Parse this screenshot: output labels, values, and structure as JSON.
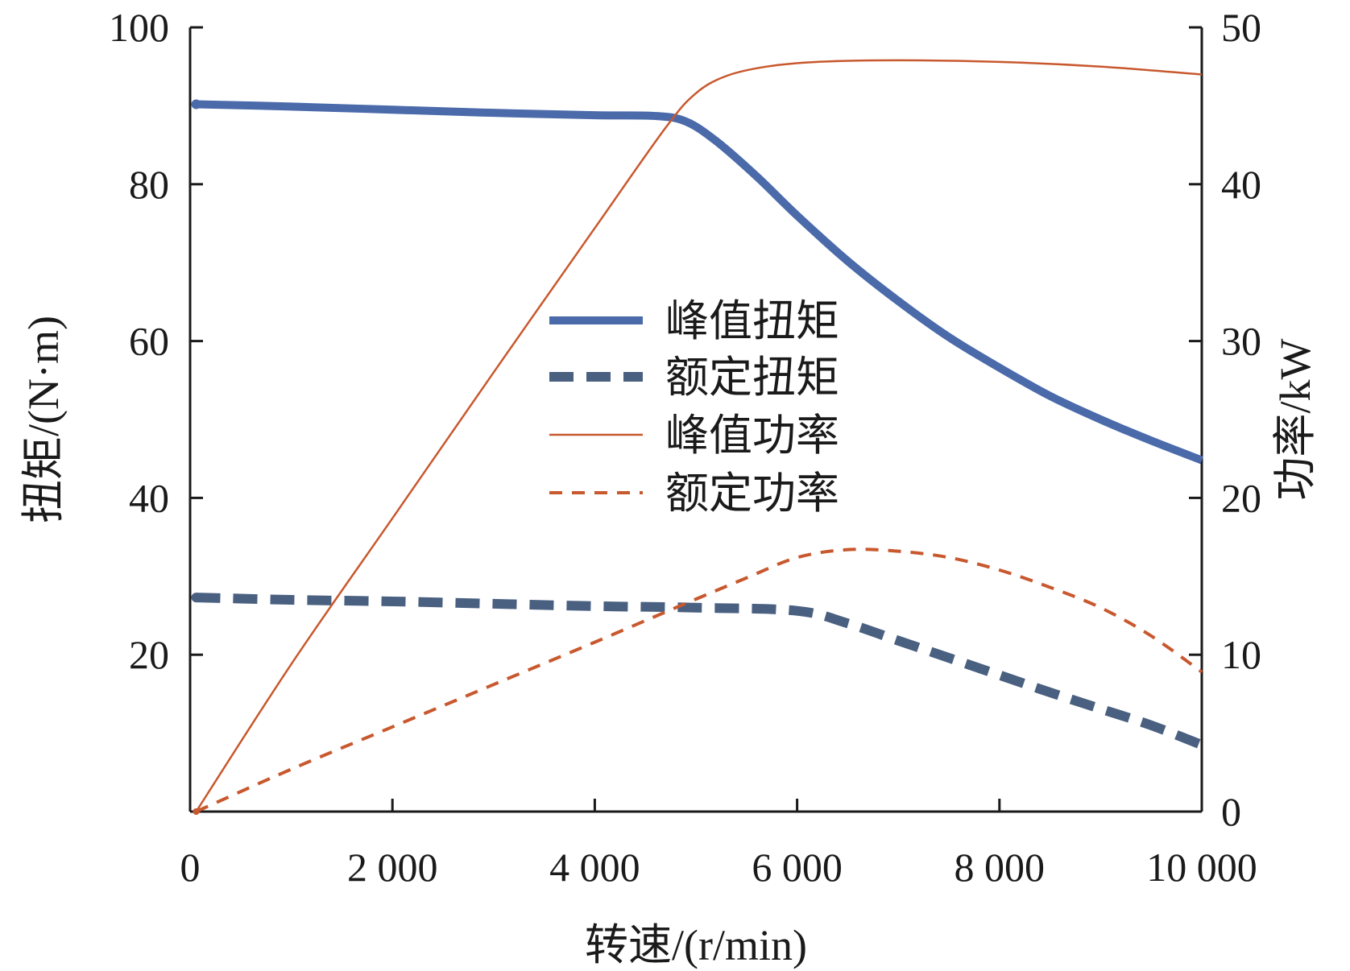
{
  "chart_data": {
    "type": "line",
    "xlabel": "转速/(r/min)",
    "ylabel_left": "扭矩/(N·m)",
    "ylabel_right": "功率/kW",
    "xlim": [
      0,
      10000
    ],
    "ylim_left": [
      0,
      100
    ],
    "ylim_right": [
      0,
      50
    ],
    "x_ticks": [
      0,
      2000,
      4000,
      6000,
      8000,
      10000
    ],
    "x_tick_labels": [
      "0",
      "2 000",
      "4 000",
      "6 000",
      "8 000",
      "10 000"
    ],
    "y_left_ticks": [
      20,
      40,
      60,
      80,
      100
    ],
    "y_left_tick_labels": [
      "20",
      "40",
      "60",
      "80",
      "100"
    ],
    "y_right_ticks": [
      0,
      10,
      20,
      30,
      40,
      50
    ],
    "y_right_tick_labels": [
      "0",
      "10",
      "20",
      "30",
      "40",
      "50"
    ],
    "legend_position": "center",
    "grid": false,
    "series": [
      {
        "name": "峰值扭矩",
        "axis": "left",
        "color": "#4a6aaa",
        "style": "solid-thick",
        "points": [
          [
            60,
            90.2
          ],
          [
            1000,
            89.9
          ],
          [
            2000,
            89.5
          ],
          [
            3000,
            89.1
          ],
          [
            4000,
            88.8
          ],
          [
            4600,
            88.7
          ],
          [
            4900,
            88.0
          ],
          [
            5200,
            85.5
          ],
          [
            5600,
            81.0
          ],
          [
            6000,
            76.0
          ],
          [
            6500,
            70.2
          ],
          [
            7000,
            65.1
          ],
          [
            7500,
            60.5
          ],
          [
            8000,
            56.6
          ],
          [
            8500,
            53.0
          ],
          [
            9000,
            50.0
          ],
          [
            9500,
            47.3
          ],
          [
            10000,
            44.8
          ]
        ]
      },
      {
        "name": "额定扭矩",
        "axis": "left",
        "color": "#4a6080",
        "style": "dashed-thick",
        "points": [
          [
            60,
            27.3
          ],
          [
            1000,
            27.0
          ],
          [
            2000,
            26.8
          ],
          [
            3000,
            26.5
          ],
          [
            4000,
            26.2
          ],
          [
            5000,
            26.0
          ],
          [
            6000,
            25.6
          ],
          [
            6500,
            24.0
          ],
          [
            7000,
            21.8
          ],
          [
            7500,
            19.6
          ],
          [
            8000,
            17.4
          ],
          [
            8500,
            15.2
          ],
          [
            9000,
            13.1
          ],
          [
            9500,
            11.0
          ],
          [
            10000,
            8.5
          ]
        ]
      },
      {
        "name": "峰值功率",
        "axis": "right",
        "color": "#c8582e",
        "style": "solid-thin",
        "points": [
          [
            60,
            0
          ],
          [
            1000,
            9.4
          ],
          [
            2000,
            18.7
          ],
          [
            3000,
            28.0
          ],
          [
            4000,
            37.2
          ],
          [
            4700,
            43.6
          ],
          [
            5000,
            45.8
          ],
          [
            5300,
            46.9
          ],
          [
            5700,
            47.5
          ],
          [
            6200,
            47.8
          ],
          [
            7000,
            47.9
          ],
          [
            8000,
            47.8
          ],
          [
            9000,
            47.5
          ],
          [
            10000,
            47.0
          ]
        ]
      },
      {
        "name": "额定功率",
        "axis": "right",
        "color": "#c8582e",
        "style": "dashed-thin",
        "points": [
          [
            60,
            0
          ],
          [
            1000,
            2.7
          ],
          [
            2000,
            5.4
          ],
          [
            3000,
            8.1
          ],
          [
            4000,
            10.8
          ],
          [
            4800,
            13.0
          ],
          [
            5500,
            14.9
          ],
          [
            6000,
            16.2
          ],
          [
            6500,
            16.7
          ],
          [
            7000,
            16.6
          ],
          [
            7500,
            16.2
          ],
          [
            8000,
            15.4
          ],
          [
            8500,
            14.3
          ],
          [
            9000,
            13.0
          ],
          [
            9500,
            11.2
          ],
          [
            10000,
            8.9
          ]
        ]
      }
    ]
  }
}
